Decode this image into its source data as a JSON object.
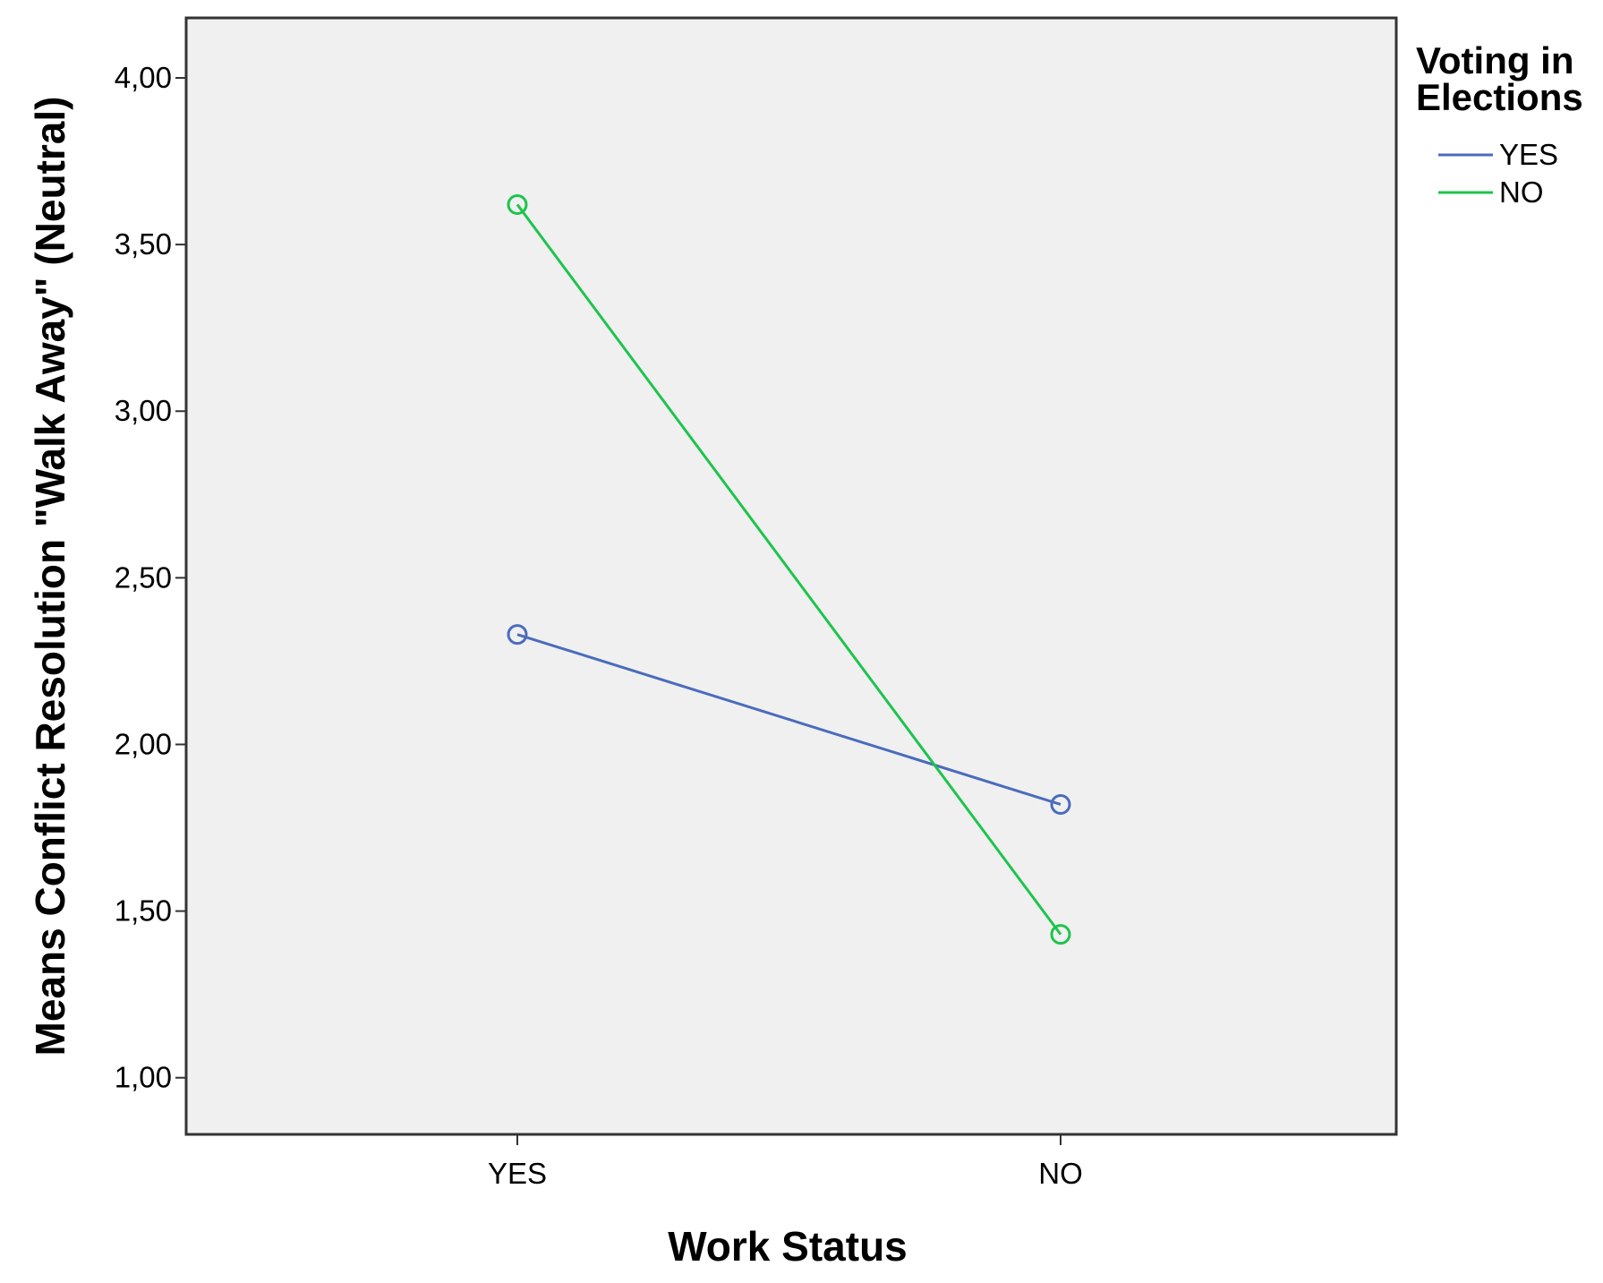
{
  "chart_data": {
    "type": "line",
    "title": "",
    "xlabel": "Work Status",
    "ylabel": "Means Conflict Resolution \"Walk Away\" (Neutral)",
    "categories": [
      "YES",
      "NO"
    ],
    "y_ticks": [
      1.0,
      1.5,
      2.0,
      2.5,
      3.0,
      3.5,
      4.0
    ],
    "y_tick_labels": [
      "1,00",
      "1,50",
      "2,00",
      "2,50",
      "3,00",
      "3,50",
      "4,00"
    ],
    "ylim": [
      0.83,
      4.18
    ],
    "grid": false,
    "legend": {
      "title_lines": [
        "Voting in",
        "Elections"
      ],
      "placement": "right"
    },
    "series": [
      {
        "name": "YES",
        "values": [
          2.33,
          1.82
        ],
        "color": "#4a6cbc"
      },
      {
        "name": "NO",
        "values": [
          3.62,
          1.43
        ],
        "color": "#1dc44c"
      }
    ],
    "plot_background": "#f0f0f0",
    "marker": "circle-open"
  }
}
